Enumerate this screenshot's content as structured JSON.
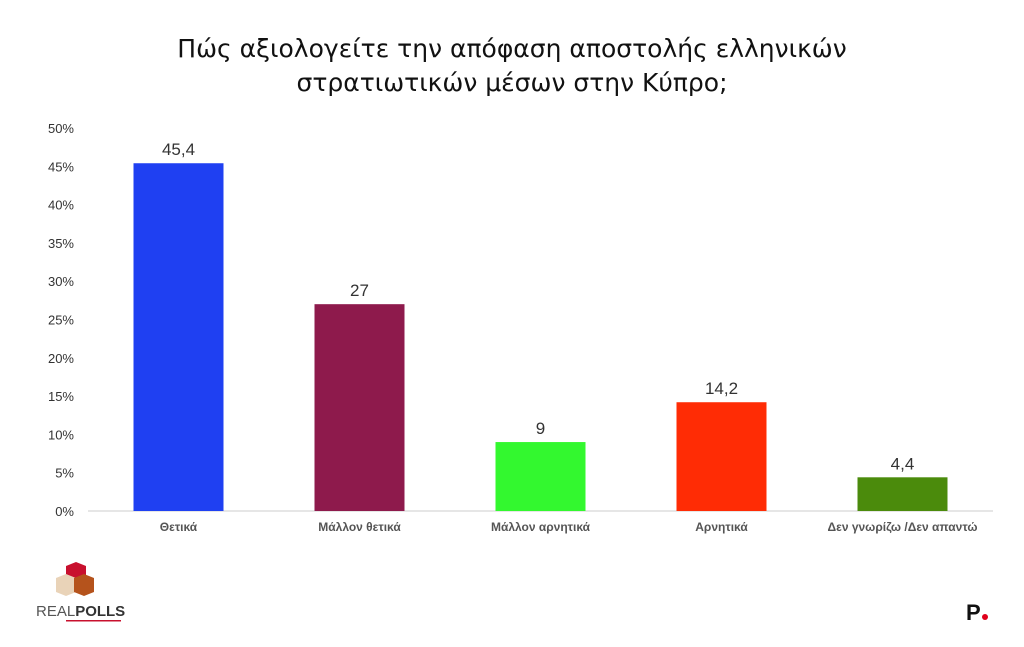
{
  "chart_data": {
    "type": "bar",
    "title": "Πώς αξιολογείτε την απόφαση αποστολής ελληνικών στρατιωτικών μέσων στην Κύπρο;",
    "title_lines": [
      "Πώς αξιολογείτε την απόφαση αποστολής ελληνικών",
      "στρατιωτικών μέσων στην Κύπρο;"
    ],
    "categories": [
      "Θετικά",
      "Μάλλον θετικά",
      "Μάλλον αρνητικά",
      "Αρνητικά",
      "Δεν γνωρίζω  /Δεν απαντώ"
    ],
    "values": [
      45.4,
      27,
      9,
      14.2,
      4.4
    ],
    "data_labels": [
      "45,4",
      "27",
      "9",
      "14,2",
      "4,4"
    ],
    "colors": [
      "#1f40f2",
      "#8e1a4c",
      "#33f82f",
      "#ff2c05",
      "#4b8b0c"
    ],
    "ylim": [
      0,
      50
    ],
    "yticks": [
      "0%",
      "5%",
      "10%",
      "15%",
      "20%",
      "25%",
      "30%",
      "35%",
      "40%",
      "45%",
      "50%"
    ],
    "grid": false,
    "legend": "none"
  },
  "logos": {
    "left": "REALPOLLS",
    "right": "P."
  }
}
